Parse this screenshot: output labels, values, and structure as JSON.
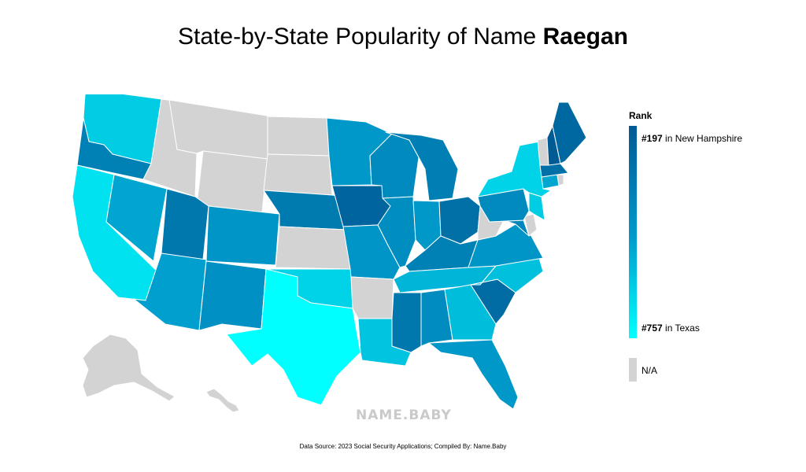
{
  "title": {
    "prefix": "State-by-State Popularity of Name ",
    "name": "Raegan"
  },
  "legend": {
    "title": "Rank",
    "top_rank": "#197",
    "top_text": " in New Hampshire",
    "bottom_rank": "#757",
    "bottom_text": " in Texas",
    "na_label": "N/A",
    "colors": {
      "high": "#005a94",
      "mid": "#0096c8",
      "low": "#00ffff",
      "na": "#d3d3d3"
    }
  },
  "watermark": "NAME.BABY",
  "source": "Data Source: 2023 Social Security Applications; Compiled By: Name.Baby",
  "chart_data": {
    "type": "choropleth",
    "metric": "Rank",
    "range": {
      "best": 197,
      "worst": 757
    },
    "states": [
      {
        "id": "WA",
        "rank": 620
      },
      {
        "id": "OR",
        "rank": 380
      },
      {
        "id": "CA",
        "rank": 680
      },
      {
        "id": "NV",
        "rank": 520
      },
      {
        "id": "ID",
        "rank": null
      },
      {
        "id": "MT",
        "rank": null
      },
      {
        "id": "WY",
        "rank": null
      },
      {
        "id": "UT",
        "rank": 330
      },
      {
        "id": "AZ",
        "rank": 500
      },
      {
        "id": "CO",
        "rank": 470
      },
      {
        "id": "NM",
        "rank": 450
      },
      {
        "id": "ND",
        "rank": null
      },
      {
        "id": "SD",
        "rank": null
      },
      {
        "id": "NE",
        "rank": 350
      },
      {
        "id": "KS",
        "rank": null
      },
      {
        "id": "OK",
        "rank": 640
      },
      {
        "id": "TX",
        "rank": 757
      },
      {
        "id": "MN",
        "rank": 480
      },
      {
        "id": "IA",
        "rank": 250
      },
      {
        "id": "MO",
        "rank": 470
      },
      {
        "id": "AR",
        "rank": null
      },
      {
        "id": "LA",
        "rank": 600
      },
      {
        "id": "WI",
        "rank": 420
      },
      {
        "id": "IL",
        "rank": 440
      },
      {
        "id": "MI",
        "rank": 370
      },
      {
        "id": "IN",
        "rank": 480
      },
      {
        "id": "OH",
        "rank": 300
      },
      {
        "id": "KY",
        "rank": 380
      },
      {
        "id": "TN",
        "rank": 560
      },
      {
        "id": "MS",
        "rank": 330
      },
      {
        "id": "AL",
        "rank": 430
      },
      {
        "id": "GA",
        "rank": 580
      },
      {
        "id": "FL",
        "rank": 480
      },
      {
        "id": "SC",
        "rank": 280
      },
      {
        "id": "NC",
        "rank": 590
      },
      {
        "id": "VA",
        "rank": 470
      },
      {
        "id": "WV",
        "rank": null
      },
      {
        "id": "PA",
        "rank": 420
      },
      {
        "id": "NY",
        "rank": 640
      },
      {
        "id": "VT",
        "rank": null
      },
      {
        "id": "NH",
        "rank": 197
      },
      {
        "id": "ME",
        "rank": 260
      },
      {
        "id": "MA",
        "rank": 300
      },
      {
        "id": "CT",
        "rank": 520
      },
      {
        "id": "RI",
        "rank": null
      },
      {
        "id": "NJ",
        "rank": 620
      },
      {
        "id": "DE",
        "rank": null
      },
      {
        "id": "MD",
        "rank": 400
      },
      {
        "id": "AK",
        "rank": null
      },
      {
        "id": "HI",
        "rank": null
      }
    ]
  }
}
